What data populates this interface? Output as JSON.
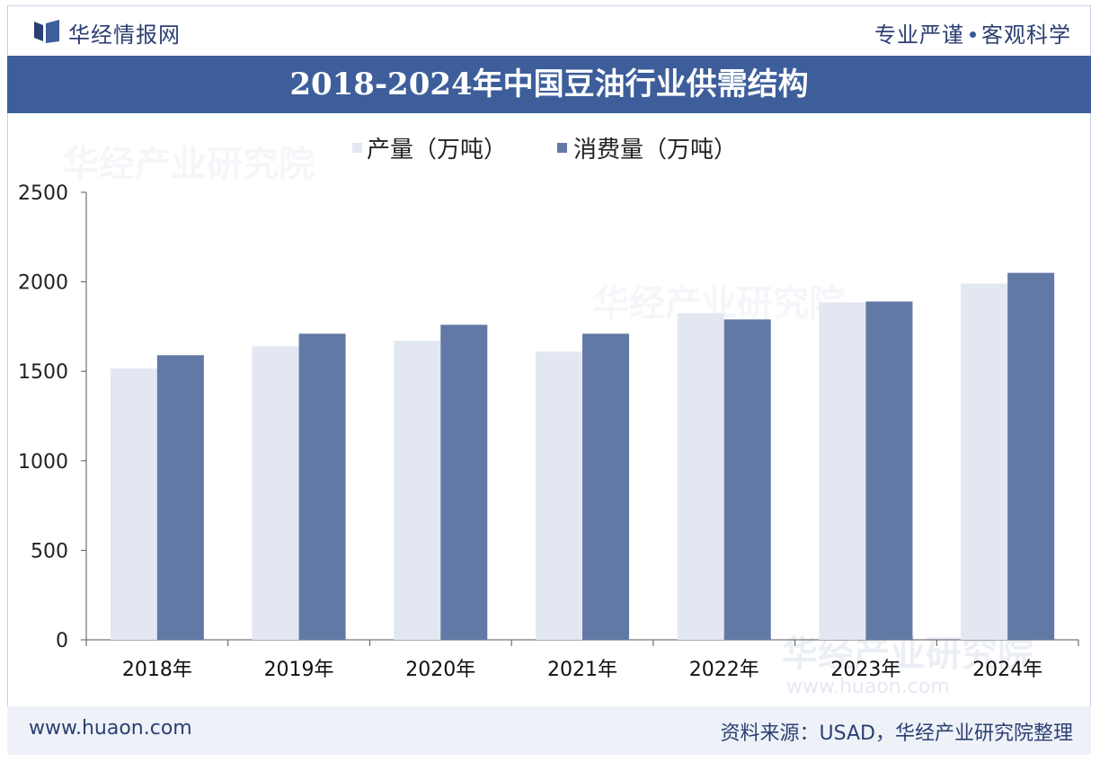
{
  "header": {
    "logo_text": "华经情报网",
    "slogan_left": "专业严谨",
    "slogan_right": "客观科学"
  },
  "title": "2018-2024年中国豆油行业供需结构",
  "footer": {
    "url": "www.huaon.com",
    "source": "资料来源：USAD，华经产业研究院整理"
  },
  "watermark": {
    "text": "华经产业研究院",
    "url": "www.huaon.com"
  },
  "colors": {
    "production": "#e2e7f1",
    "consumption": "#6279a6",
    "band": "#3d5e9a",
    "text": "#2c3f72"
  },
  "chart_data": {
    "type": "bar",
    "title": "2018-2024年中国豆油行业供需结构",
    "categories": [
      "2018年",
      "2019年",
      "2020年",
      "2021年",
      "2022年",
      "2023年",
      "2024年"
    ],
    "series": [
      {
        "name": "产量（万吨）",
        "values": [
          1515,
          1640,
          1670,
          1610,
          1825,
          1885,
          1990
        ]
      },
      {
        "name": "消费量（万吨）",
        "values": [
          1590,
          1710,
          1760,
          1710,
          1790,
          1890,
          2050
        ]
      }
    ],
    "ylim": [
      0,
      2500
    ],
    "yticks": [
      0,
      500,
      1000,
      1500,
      2000,
      2500
    ],
    "xlabel": "",
    "ylabel": "",
    "legend": "top-center",
    "grid": false
  }
}
